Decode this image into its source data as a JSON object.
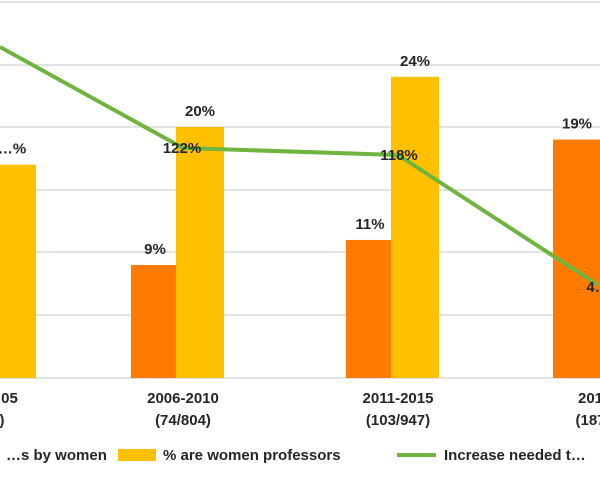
{
  "chart_data": {
    "type": "bar",
    "categories": [
      {
        "period": "…05",
        "count": ")"
      },
      {
        "period": "2006-2010",
        "count": "(74/804)"
      },
      {
        "period": "2011-2015",
        "count": "(103/947)"
      },
      {
        "period": "201…",
        "count": "(187…"
      }
    ],
    "series": [
      {
        "name": "…s by women",
        "kind": "bar",
        "color": "#ff7b00",
        "values": [
          null,
          9,
          11,
          19
        ],
        "labels": [
          "",
          "9%",
          "11%",
          "19%"
        ]
      },
      {
        "name": "% are women professors",
        "kind": "bar",
        "color": "#ffc000",
        "values": [
          17,
          20,
          24,
          null
        ],
        "labels": [
          "…%",
          "20%",
          "24%",
          ""
        ]
      },
      {
        "name": "Increase needed t…",
        "kind": "line",
        "color": "#6fb43f",
        "values": [
          160,
          122,
          118,
          40
        ],
        "labels": [
          "",
          "122%",
          "118%",
          "4…"
        ]
      }
    ],
    "grid": true,
    "legend_position": "bottom",
    "ylim": [
      0,
      30
    ]
  }
}
